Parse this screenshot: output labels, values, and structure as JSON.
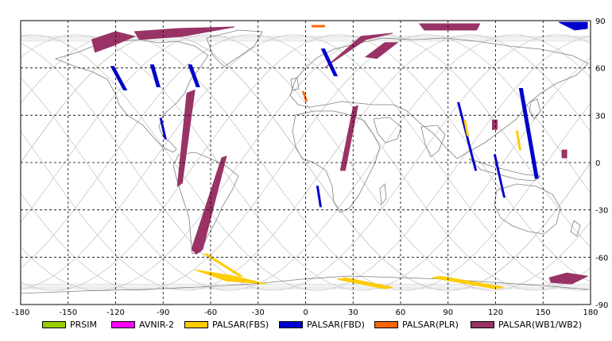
{
  "axes": {
    "x_ticks": [
      "-180",
      "-150",
      "-120",
      "-90",
      "-60",
      "-30",
      "0",
      "30",
      "60",
      "90",
      "120",
      "150",
      "180"
    ],
    "y_ticks": [
      "90",
      "60",
      "30",
      "0",
      "-30",
      "-60",
      "-90"
    ],
    "lon_range": [
      -180,
      180
    ],
    "lat_range": [
      -90,
      90
    ],
    "grid": "dashed"
  },
  "legend": {
    "items": [
      {
        "label": "PRSIM",
        "color": "#99cc00"
      },
      {
        "label": "AVNIR-2",
        "color": "#ff00ff"
      },
      {
        "label": "PALSAR(FBS)",
        "color": "#ffcc00"
      },
      {
        "label": "PALSAR(FBD)",
        "color": "#0000cc"
      },
      {
        "label": "PALSAR(PLR)",
        "color": "#ff6600"
      },
      {
        "label": "PALSAR(WB1/WB2)",
        "color": "#993366"
      }
    ]
  },
  "colors": {
    "coastline": "#808080",
    "orbit": "#c8c8c8",
    "grid": "#000000"
  },
  "swaths": [
    {
      "mode": "PALSAR(WB1/WB2)",
      "pts": [
        [
          -135,
          78
        ],
        [
          -120,
          83
        ],
        [
          -108,
          80
        ],
        [
          -122,
          74
        ],
        [
          -133,
          70
        ]
      ]
    },
    {
      "mode": "PALSAR(WB1/WB2)",
      "pts": [
        [
          -108,
          83
        ],
        [
          -80,
          85
        ],
        [
          -45,
          86
        ],
        [
          -78,
          80
        ],
        [
          -105,
          78
        ]
      ]
    },
    {
      "mode": "PALSAR(WB1/WB2)",
      "pts": [
        [
          -75,
          44
        ],
        [
          -70,
          46
        ],
        [
          -78,
          -13
        ],
        [
          -81,
          -15
        ]
      ]
    },
    {
      "mode": "PALSAR(WB1/WB2)",
      "pts": [
        [
          -53,
          3
        ],
        [
          -50,
          4
        ],
        [
          -65,
          -55
        ],
        [
          -69,
          -58
        ],
        [
          -72,
          -55
        ]
      ]
    },
    {
      "mode": "PALSAR(WB1/WB2)",
      "pts": [
        [
          12,
          60
        ],
        [
          35,
          80
        ],
        [
          55,
          82
        ],
        [
          38,
          78
        ],
        [
          16,
          63
        ]
      ]
    },
    {
      "mode": "PALSAR(WB1/WB2)",
      "pts": [
        [
          38,
          67
        ],
        [
          50,
          76
        ],
        [
          58,
          76
        ],
        [
          45,
          66
        ]
      ]
    },
    {
      "mode": "PALSAR(WB1/WB2)",
      "pts": [
        [
          30,
          35
        ],
        [
          33,
          36
        ],
        [
          25,
          -5
        ],
        [
          22,
          -5
        ]
      ]
    },
    {
      "mode": "PALSAR(WB1/WB2)",
      "pts": [
        [
          72,
          88
        ],
        [
          110,
          88
        ],
        [
          108,
          84
        ],
        [
          75,
          84
        ]
      ]
    },
    {
      "mode": "PALSAR(WB1/WB2)",
      "pts": [
        [
          154,
          -73
        ],
        [
          165,
          -70
        ],
        [
          178,
          -72
        ],
        [
          168,
          -77
        ],
        [
          155,
          -76
        ]
      ]
    },
    {
      "mode": "PALSAR(WB1/WB2)",
      "pts": [
        [
          118,
          27
        ],
        [
          121,
          27
        ],
        [
          121,
          21
        ],
        [
          118,
          21
        ]
      ]
    },
    {
      "mode": "PALSAR(WB1/WB2)",
      "pts": [
        [
          162,
          8
        ],
        [
          165,
          8
        ],
        [
          165,
          3
        ],
        [
          162,
          3
        ]
      ]
    },
    {
      "mode": "PALSAR(FBD)",
      "pts": [
        [
          -123,
          61
        ],
        [
          -121,
          61
        ],
        [
          -113,
          46
        ],
        [
          -115,
          46
        ]
      ]
    },
    {
      "mode": "PALSAR(FBD)",
      "pts": [
        [
          -98,
          62
        ],
        [
          -96,
          62
        ],
        [
          -92,
          48
        ],
        [
          -94,
          48
        ]
      ]
    },
    {
      "mode": "PALSAR(FBD)",
      "pts": [
        [
          -74,
          62
        ],
        [
          -72,
          62
        ],
        [
          -67,
          48
        ],
        [
          -69,
          48
        ]
      ]
    },
    {
      "mode": "PALSAR(FBD)",
      "pts": [
        [
          10,
          72
        ],
        [
          12,
          72
        ],
        [
          20,
          55
        ],
        [
          18,
          55
        ]
      ]
    },
    {
      "mode": "PALSAR(FBD)",
      "pts": [
        [
          135,
          47
        ],
        [
          137,
          47
        ],
        [
          147,
          -10
        ],
        [
          145,
          -10
        ]
      ]
    },
    {
      "mode": "PALSAR(FBD)",
      "pts": [
        [
          96,
          38
        ],
        [
          97,
          38
        ],
        [
          108,
          -5
        ],
        [
          107,
          -5
        ]
      ]
    },
    {
      "mode": "PALSAR(FBD)",
      "pts": [
        [
          119,
          5
        ],
        [
          120,
          5
        ],
        [
          126,
          -22
        ],
        [
          125,
          -22
        ]
      ]
    },
    {
      "mode": "PALSAR(FBD)",
      "pts": [
        [
          160,
          89
        ],
        [
          178,
          89
        ],
        [
          178,
          85
        ],
        [
          170,
          84
        ]
      ]
    },
    {
      "mode": "PALSAR(FBD)",
      "pts": [
        [
          7,
          -15
        ],
        [
          8,
          -15
        ],
        [
          10,
          -28
        ],
        [
          9,
          -28
        ]
      ]
    },
    {
      "mode": "PALSAR(FBD)",
      "pts": [
        [
          -92,
          28
        ],
        [
          -91,
          28
        ],
        [
          -88,
          15
        ],
        [
          -89,
          15
        ]
      ]
    },
    {
      "mode": "PALSAR(FBS)",
      "pts": [
        [
          -64,
          -58
        ],
        [
          -62,
          -58
        ],
        [
          -40,
          -72
        ],
        [
          -42,
          -72
        ]
      ]
    },
    {
      "mode": "PALSAR(FBS)",
      "pts": [
        [
          -70,
          -68
        ],
        [
          -50,
          -75
        ],
        [
          -25,
          -77
        ],
        [
          -45,
          -72
        ]
      ]
    },
    {
      "mode": "PALSAR(FBS)",
      "pts": [
        [
          20,
          -74
        ],
        [
          50,
          -80
        ],
        [
          55,
          -79
        ],
        [
          25,
          -73
        ]
      ]
    },
    {
      "mode": "PALSAR(FBS)",
      "pts": [
        [
          80,
          -73
        ],
        [
          120,
          -80
        ],
        [
          125,
          -79
        ],
        [
          85,
          -72
        ]
      ]
    },
    {
      "mode": "PALSAR(FBS)",
      "pts": [
        [
          100,
          27
        ],
        [
          101,
          27
        ],
        [
          103,
          17
        ],
        [
          102,
          17
        ]
      ]
    },
    {
      "mode": "PALSAR(FBS)",
      "pts": [
        [
          133,
          20
        ],
        [
          134,
          20
        ],
        [
          136,
          8
        ],
        [
          135,
          8
        ]
      ]
    },
    {
      "mode": "PALSAR(PLR)",
      "pts": [
        [
          4,
          87
        ],
        [
          12,
          87
        ],
        [
          12,
          86
        ],
        [
          4,
          86
        ]
      ]
    },
    {
      "mode": "PALSAR(PLR)",
      "pts": [
        [
          -2,
          45
        ],
        [
          -1,
          45
        ],
        [
          1,
          39
        ],
        [
          0,
          39
        ]
      ]
    }
  ]
}
